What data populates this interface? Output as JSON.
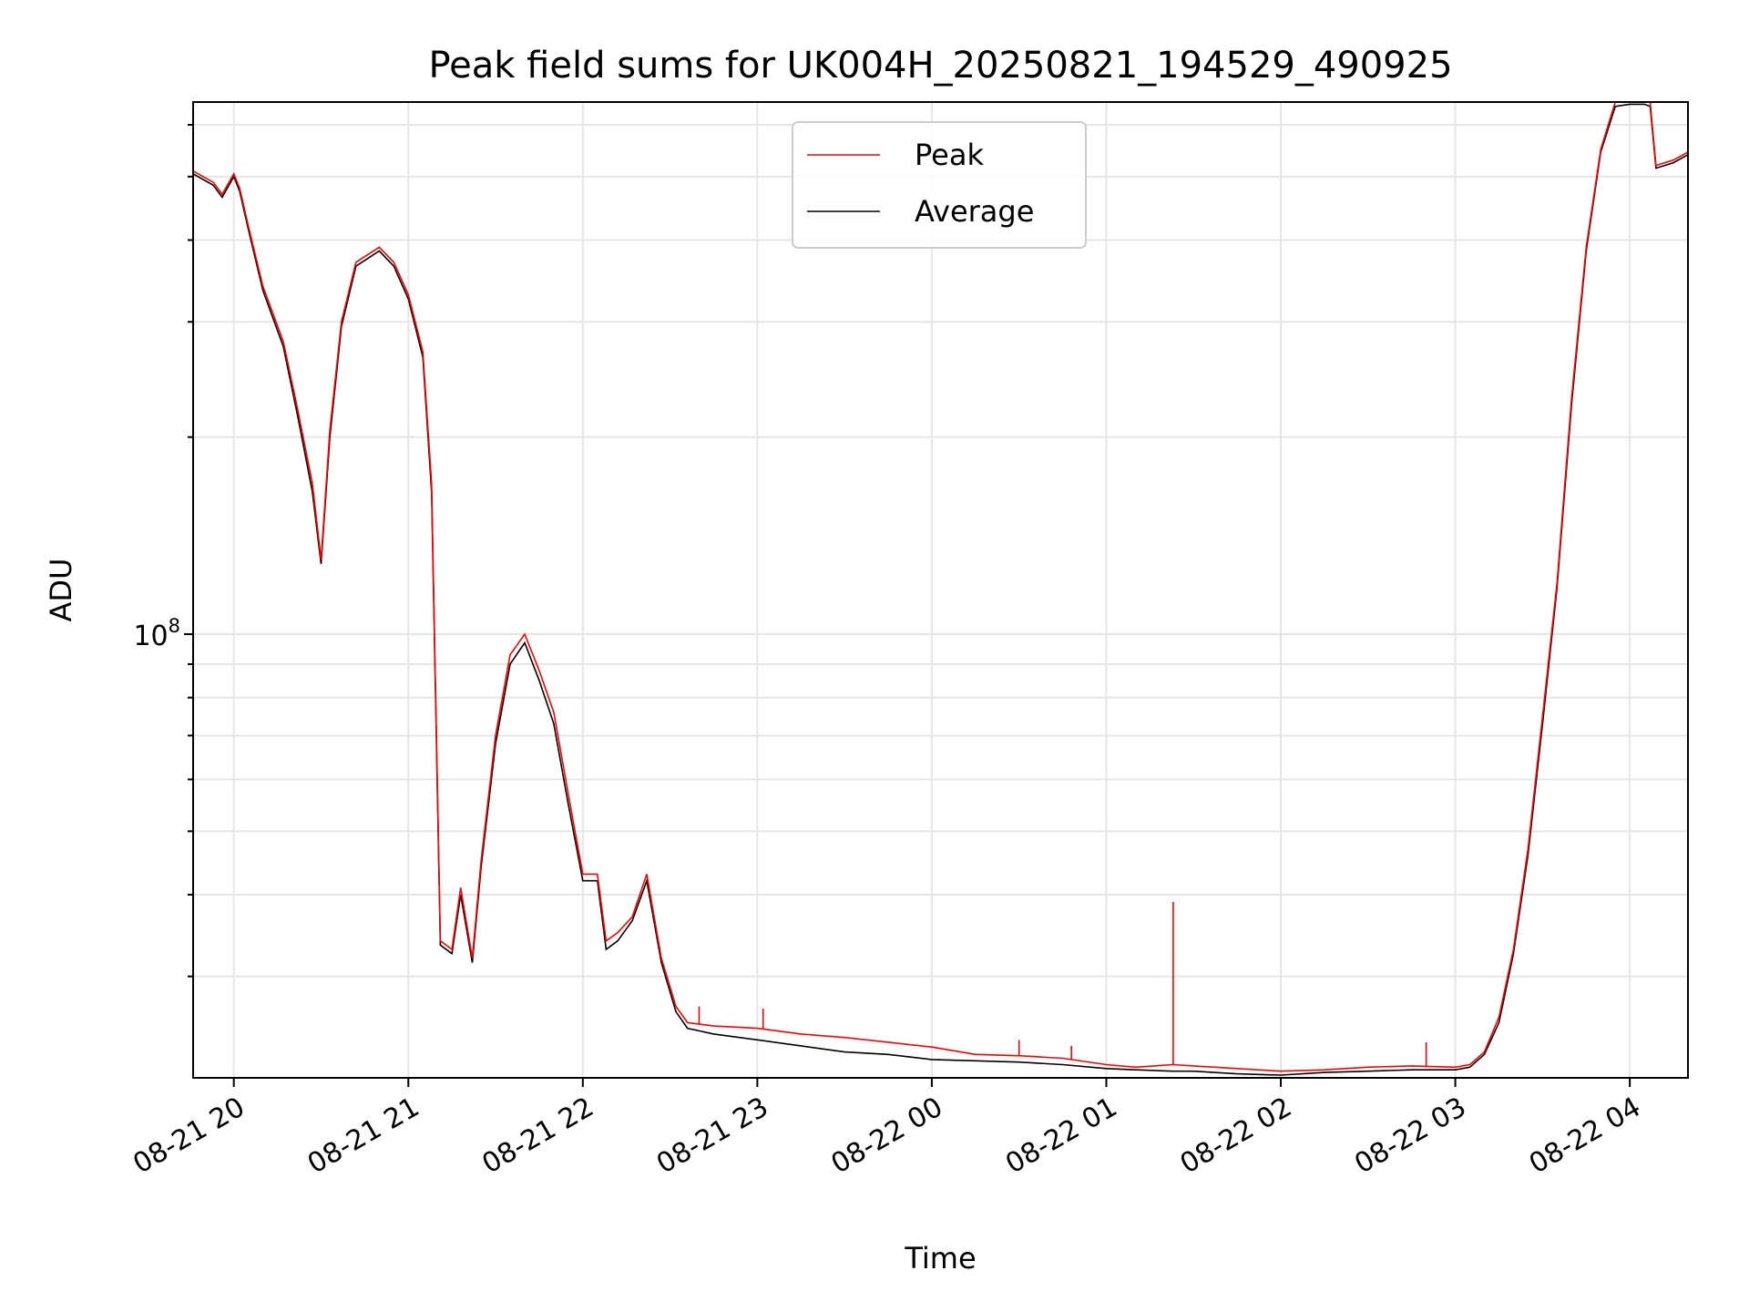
{
  "chart_data": {
    "type": "line",
    "title": "Peak field sums for UK004H_20250821_194529_490925",
    "xlabel": "Time",
    "ylabel": "ADU",
    "yscale": "log",
    "ylim": [
      21000000,
      650000000
    ],
    "xlim": [
      "2025-08-21 19:46",
      "2025-08-22 04:20"
    ],
    "grid": true,
    "legend_position": "upper center",
    "x_ticks": [
      "08-21 20",
      "08-21 21",
      "08-21 22",
      "08-21 23",
      "08-22 00",
      "08-22 01",
      "08-22 02",
      "08-22 03",
      "08-22 04"
    ],
    "y_tick_major": "10^8",
    "series": [
      {
        "name": "Peak",
        "color": "#ff0000",
        "x": [
          "2025-08-21 19:46",
          "2025-08-21 19:53",
          "2025-08-21 19:56",
          "2025-08-21 20:00",
          "2025-08-21 20:02",
          "2025-08-21 20:05",
          "2025-08-21 20:10",
          "2025-08-21 20:17",
          "2025-08-21 20:22",
          "2025-08-21 20:27",
          "2025-08-21 20:30",
          "2025-08-21 20:33",
          "2025-08-21 20:37",
          "2025-08-21 20:42",
          "2025-08-21 20:50",
          "2025-08-21 20:55",
          "2025-08-21 21:00",
          "2025-08-21 21:05",
          "2025-08-21 21:08",
          "2025-08-21 21:11",
          "2025-08-21 21:15",
          "2025-08-21 21:18",
          "2025-08-21 21:22",
          "2025-08-21 21:25",
          "2025-08-21 21:30",
          "2025-08-21 21:35",
          "2025-08-21 21:40",
          "2025-08-21 21:45",
          "2025-08-21 21:50",
          "2025-08-21 21:55",
          "2025-08-21 22:00",
          "2025-08-21 22:05",
          "2025-08-21 22:08",
          "2025-08-21 22:12",
          "2025-08-21 22:17",
          "2025-08-21 22:22",
          "2025-08-21 22:27",
          "2025-08-21 22:32",
          "2025-08-21 22:36",
          "2025-08-21 22:45",
          "2025-08-21 23:00",
          "2025-08-21 23:15",
          "2025-08-21 23:30",
          "2025-08-21 23:45",
          "2025-08-22 00:00",
          "2025-08-22 00:15",
          "2025-08-22 00:30",
          "2025-08-22 00:45",
          "2025-08-22 01:00",
          "2025-08-22 01:10",
          "2025-08-22 01:23",
          "2025-08-22 01:30",
          "2025-08-22 01:45",
          "2025-08-22 02:00",
          "2025-08-22 02:15",
          "2025-08-22 02:30",
          "2025-08-22 02:45",
          "2025-08-22 03:00",
          "2025-08-22 03:05",
          "2025-08-22 03:10",
          "2025-08-22 03:15",
          "2025-08-22 03:20",
          "2025-08-22 03:25",
          "2025-08-22 03:30",
          "2025-08-22 03:35",
          "2025-08-22 03:40",
          "2025-08-22 03:45",
          "2025-08-22 03:50",
          "2025-08-22 03:55",
          "2025-08-22 04:00",
          "2025-08-22 04:05",
          "2025-08-22 04:07",
          "2025-08-22 04:09",
          "2025-08-22 04:15",
          "2025-08-22 04:20"
        ],
        "y": [
          510000000,
          490000000,
          470000000,
          505000000,
          480000000,
          420000000,
          340000000,
          280000000,
          220000000,
          170000000,
          130000000,
          205000000,
          300000000,
          370000000,
          390000000,
          370000000,
          330000000,
          270000000,
          170000000,
          34000000,
          33000000,
          41000000,
          32000000,
          45000000,
          70000000,
          93000000,
          100000000,
          88000000,
          76000000,
          57000000,
          43000000,
          43000000,
          34000000,
          35000000,
          37000000,
          43000000,
          32000000,
          27000000,
          25500000,
          25200000,
          25000000,
          24500000,
          24200000,
          23800000,
          23400000,
          22800000,
          22700000,
          22500000,
          22000000,
          21800000,
          22000000,
          21900000,
          21700000,
          21500000,
          21600000,
          21800000,
          21900000,
          21800000,
          22000000,
          23000000,
          26000000,
          33000000,
          47000000,
          75000000,
          120000000,
          230000000,
          390000000,
          550000000,
          650000000,
          650000000,
          650000000,
          650000000,
          520000000,
          530000000,
          545000000
        ],
        "spikes": [
          {
            "x": "2025-08-22 01:23",
            "y": 39000000
          },
          {
            "x": "2025-08-21 22:40",
            "y": 27000000
          },
          {
            "x": "2025-08-21 23:02",
            "y": 26800000
          },
          {
            "x": "2025-08-22 00:30",
            "y": 24000000
          },
          {
            "x": "2025-08-22 00:48",
            "y": 23500000
          },
          {
            "x": "2025-08-22 02:50",
            "y": 23800000
          }
        ]
      },
      {
        "name": "Average",
        "color": "#000000",
        "x": [
          "2025-08-21 19:46",
          "2025-08-21 19:53",
          "2025-08-21 19:56",
          "2025-08-21 20:00",
          "2025-08-21 20:02",
          "2025-08-21 20:05",
          "2025-08-21 20:10",
          "2025-08-21 20:17",
          "2025-08-21 20:22",
          "2025-08-21 20:27",
          "2025-08-21 20:30",
          "2025-08-21 20:33",
          "2025-08-21 20:37",
          "2025-08-21 20:42",
          "2025-08-21 20:50",
          "2025-08-21 20:55",
          "2025-08-21 21:00",
          "2025-08-21 21:05",
          "2025-08-21 21:08",
          "2025-08-21 21:11",
          "2025-08-21 21:15",
          "2025-08-21 21:18",
          "2025-08-21 21:22",
          "2025-08-21 21:25",
          "2025-08-21 21:30",
          "2025-08-21 21:35",
          "2025-08-21 21:40",
          "2025-08-21 21:45",
          "2025-08-21 21:50",
          "2025-08-21 21:55",
          "2025-08-21 22:00",
          "2025-08-21 22:05",
          "2025-08-21 22:08",
          "2025-08-21 22:12",
          "2025-08-21 22:17",
          "2025-08-21 22:22",
          "2025-08-21 22:27",
          "2025-08-21 22:32",
          "2025-08-21 22:36",
          "2025-08-21 22:45",
          "2025-08-21 23:00",
          "2025-08-21 23:15",
          "2025-08-21 23:30",
          "2025-08-21 23:45",
          "2025-08-22 00:00",
          "2025-08-22 00:15",
          "2025-08-22 00:30",
          "2025-08-22 00:45",
          "2025-08-22 01:00",
          "2025-08-22 01:10",
          "2025-08-22 01:23",
          "2025-08-22 01:30",
          "2025-08-22 01:45",
          "2025-08-22 02:00",
          "2025-08-22 02:15",
          "2025-08-22 02:30",
          "2025-08-22 02:45",
          "2025-08-22 03:00",
          "2025-08-22 03:05",
          "2025-08-22 03:10",
          "2025-08-22 03:15",
          "2025-08-22 03:20",
          "2025-08-22 03:25",
          "2025-08-22 03:30",
          "2025-08-22 03:35",
          "2025-08-22 03:40",
          "2025-08-22 03:45",
          "2025-08-22 03:50",
          "2025-08-22 03:55",
          "2025-08-22 04:00",
          "2025-08-22 04:05",
          "2025-08-22 04:07",
          "2025-08-22 04:09",
          "2025-08-22 04:15",
          "2025-08-22 04:20"
        ],
        "y": [
          505000000,
          485000000,
          465000000,
          500000000,
          475000000,
          415000000,
          335000000,
          275000000,
          215000000,
          165000000,
          128000000,
          200000000,
          295000000,
          365000000,
          385000000,
          365000000,
          325000000,
          265000000,
          165000000,
          33500000,
          32500000,
          40000000,
          31500000,
          44000000,
          68000000,
          90000000,
          97000000,
          85000000,
          73000000,
          55000000,
          42000000,
          42000000,
          33000000,
          34000000,
          36500000,
          42000000,
          31500000,
          26500000,
          25000000,
          24500000,
          24000000,
          23500000,
          23000000,
          22800000,
          22400000,
          22300000,
          22200000,
          22000000,
          21700000,
          21600000,
          21500000,
          21500000,
          21300000,
          21200000,
          21400000,
          21500000,
          21600000,
          21600000,
          21800000,
          22800000,
          25500000,
          32500000,
          46000000,
          73000000,
          118000000,
          225000000,
          385000000,
          545000000,
          640000000,
          645000000,
          645000000,
          640000000,
          515000000,
          525000000,
          540000000
        ]
      }
    ]
  }
}
